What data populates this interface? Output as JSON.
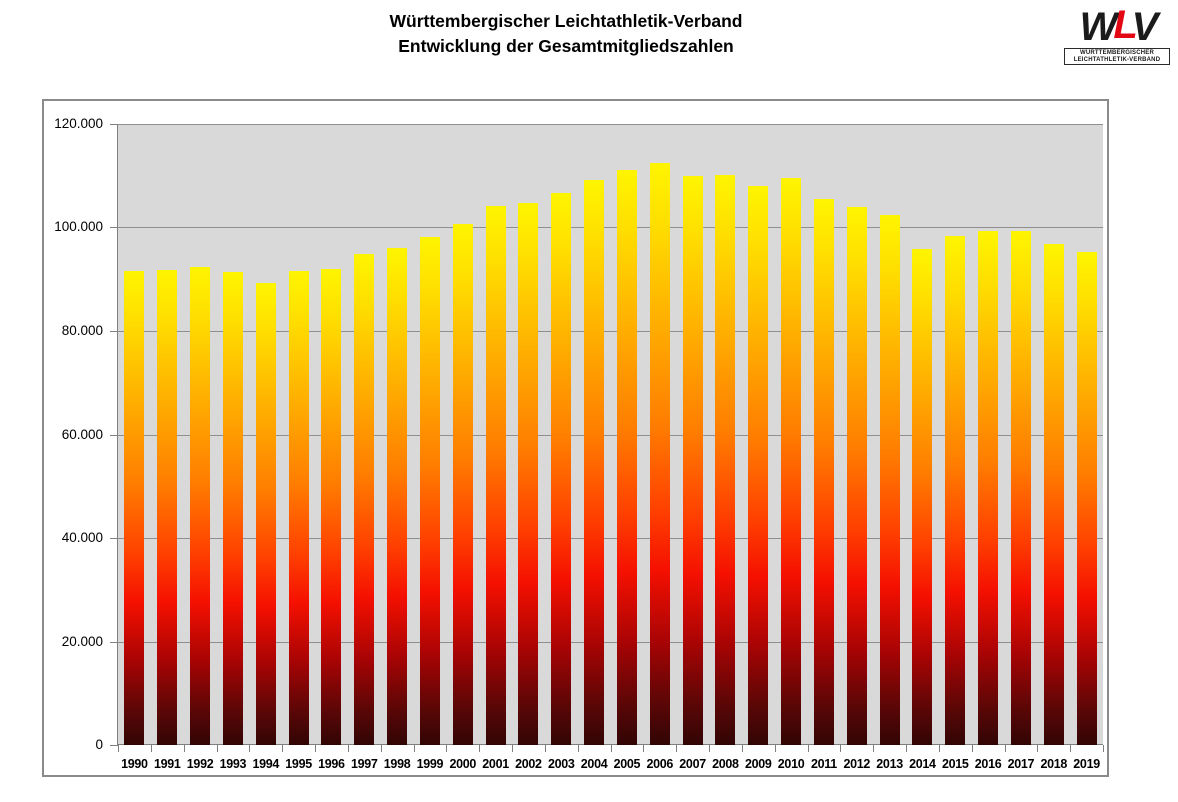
{
  "title": {
    "line1": "Württembergischer Leichtathletik-Verband",
    "line2": "Entwicklung der Gesamtmitgliedszahlen"
  },
  "logo": {
    "letter_w": "W",
    "letter_l": "L",
    "letter_v": "V",
    "caption_line1": "WÜRTTEMBERGISCHER",
    "caption_line2": "LEICHTATHLETIK-VERBAND",
    "accent_color": "#e30613"
  },
  "chart_data": {
    "type": "bar",
    "title": "Württembergischer Leichtathletik-Verband – Entwicklung der Gesamtmitgliedszahlen",
    "categories": [
      "1990",
      "1991",
      "1992",
      "1993",
      "1994",
      "1995",
      "1996",
      "1997",
      "1998",
      "1999",
      "2000",
      "2001",
      "2002",
      "2003",
      "2004",
      "2005",
      "2006",
      "2007",
      "2008",
      "2009",
      "2010",
      "2011",
      "2012",
      "2013",
      "2014",
      "2015",
      "2016",
      "2017",
      "2018",
      "2019"
    ],
    "values": [
      91500,
      91700,
      92300,
      91400,
      89200,
      91500,
      92000,
      94800,
      96100,
      98200,
      100700,
      104200,
      104800,
      106700,
      109200,
      111200,
      112400,
      110000,
      110200,
      108000,
      109500,
      105500,
      104000,
      102400,
      95900,
      98400,
      99400,
      99400,
      96800,
      95300
    ],
    "xlabel": "",
    "ylabel": "",
    "ylim": [
      0,
      120000
    ],
    "ytick_step": 20000,
    "ytick_labels": [
      "0",
      "20.000",
      "40.000",
      "60.000",
      "80.000",
      "100.000",
      "120.000"
    ],
    "grid": true,
    "legend": false,
    "plot_background": "#d9d9d9",
    "gridline_color": "#8f8f8f",
    "axis_color": "#7f7f7f",
    "bar_gradient": [
      {
        "pos": 0,
        "color": "#fff500"
      },
      {
        "pos": 10,
        "color": "#ffdf00"
      },
      {
        "pos": 28,
        "color": "#ffad00"
      },
      {
        "pos": 45,
        "color": "#ff7d00"
      },
      {
        "pos": 60,
        "color": "#ff3f00"
      },
      {
        "pos": 70,
        "color": "#f51000"
      },
      {
        "pos": 82,
        "color": "#aa0404"
      },
      {
        "pos": 93,
        "color": "#5a0606"
      },
      {
        "pos": 100,
        "color": "#320505"
      }
    ]
  }
}
